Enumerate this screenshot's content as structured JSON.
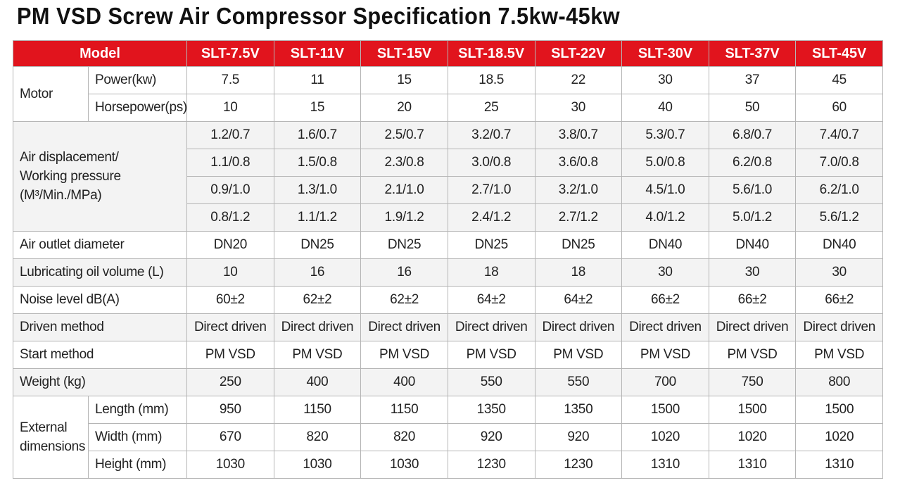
{
  "title": "PM VSD Screw Air Compressor Specification 7.5kw-45kw",
  "table": {
    "header": {
      "label": "Model",
      "models": [
        "SLT-7.5V",
        "SLT-11V",
        "SLT-15V",
        "SLT-18.5V",
        "SLT-22V",
        "SLT-30V",
        "SLT-37V",
        "SLT-45V"
      ]
    },
    "sections": [
      {
        "label": "Motor",
        "rows": [
          {
            "label": "Power(kw)",
            "values": [
              "7.5",
              "11",
              "15",
              "18.5",
              "22",
              "30",
              "37",
              "45"
            ]
          },
          {
            "label": "Horsepower(ps)",
            "values": [
              "10",
              "15",
              "20",
              "25",
              "30",
              "40",
              "50",
              "60"
            ]
          }
        ]
      },
      {
        "label": "Air displacement/\nWorking pressure\n(M³/Min./MPa)",
        "rows": [
          {
            "values": [
              "1.2/0.7",
              "1.6/0.7",
              "2.5/0.7",
              "3.2/0.7",
              "3.8/0.7",
              "5.3/0.7",
              "6.8/0.7",
              "7.4/0.7"
            ]
          },
          {
            "values": [
              "1.1/0.8",
              "1.5/0.8",
              "2.3/0.8",
              "3.0/0.8",
              "3.6/0.8",
              "5.0/0.8",
              "6.2/0.8",
              "7.0/0.8"
            ]
          },
          {
            "values": [
              "0.9/1.0",
              "1.3/1.0",
              "2.1/1.0",
              "2.7/1.0",
              "3.2/1.0",
              "4.5/1.0",
              "5.6/1.0",
              "6.2/1.0"
            ]
          },
          {
            "values": [
              "0.8/1.2",
              "1.1/1.2",
              "1.9/1.2",
              "2.4/1.2",
              "2.7/1.2",
              "4.0/1.2",
              "5.0/1.2",
              "5.6/1.2"
            ]
          }
        ]
      },
      {
        "label": "Air outlet diameter",
        "values": [
          "DN20",
          "DN25",
          "DN25",
          "DN25",
          "DN25",
          "DN40",
          "DN40",
          "DN40"
        ]
      },
      {
        "label": "Lubricating oil volume (L)",
        "values": [
          "10",
          "16",
          "16",
          "18",
          "18",
          "30",
          "30",
          "30"
        ]
      },
      {
        "label": "Noise level dB(A)",
        "values": [
          "60±2",
          "62±2",
          "62±2",
          "64±2",
          "64±2",
          "66±2",
          "66±2",
          "66±2"
        ]
      },
      {
        "label": "Driven method",
        "values": [
          "Direct driven",
          "Direct driven",
          "Direct driven",
          "Direct driven",
          "Direct driven",
          "Direct driven",
          "Direct driven",
          "Direct driven"
        ]
      },
      {
        "label": "Start method",
        "values": [
          "PM VSD",
          "PM VSD",
          "PM VSD",
          "PM VSD",
          "PM VSD",
          "PM VSD",
          "PM VSD",
          "PM VSD"
        ]
      },
      {
        "label": "Weight (kg)",
        "values": [
          "250",
          "400",
          "400",
          "550",
          "550",
          "700",
          "750",
          "800"
        ]
      },
      {
        "label": "External\ndimensions",
        "rows": [
          {
            "label": "Length (mm)",
            "values": [
              "950",
              "1150",
              "1150",
              "1350",
              "1350",
              "1500",
              "1500",
              "1500"
            ]
          },
          {
            "label": "Width (mm)",
            "values": [
              "670",
              "820",
              "820",
              "920",
              "920",
              "1020",
              "1020",
              "1020"
            ]
          },
          {
            "label": "Height (mm)",
            "values": [
              "1030",
              "1030",
              "1030",
              "1230",
              "1230",
              "1310",
              "1310",
              "1310"
            ]
          }
        ]
      }
    ]
  }
}
